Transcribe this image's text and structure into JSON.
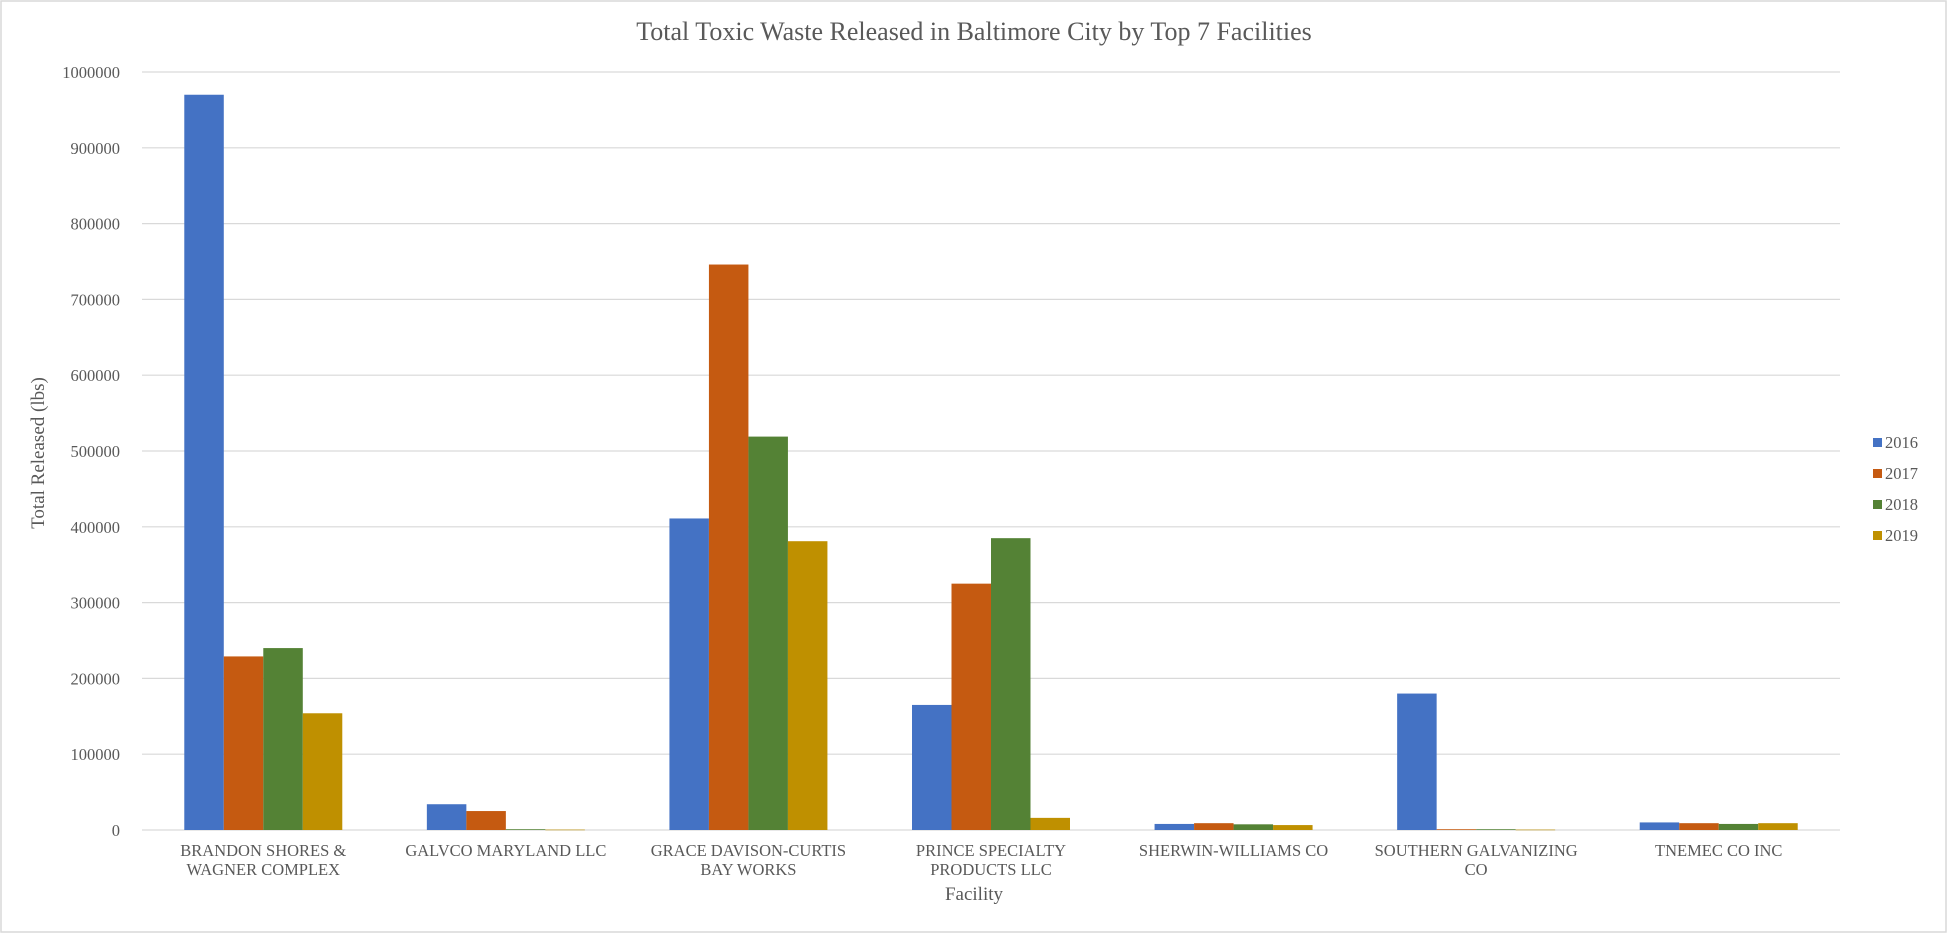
{
  "chart_data": {
    "type": "bar",
    "title": "Total Toxic Waste Released in Baltimore City by Top 7 Facilities",
    "xlabel": "Facility",
    "ylabel": "Total Released (lbs)",
    "ylim": [
      0,
      1000000
    ],
    "yticks": [
      "0",
      "100000",
      "200000",
      "300000",
      "400000",
      "500000",
      "600000",
      "700000",
      "800000",
      "900000",
      "1000000"
    ],
    "categories": [
      [
        "BRANDON SHORES &",
        "WAGNER COMPLEX"
      ],
      [
        "GALVCO MARYLAND LLC"
      ],
      [
        "GRACE DAVISON-CURTIS",
        "BAY WORKS"
      ],
      [
        "PRINCE SPECIALTY",
        "PRODUCTS LLC"
      ],
      [
        "SHERWIN-WILLIAMS CO"
      ],
      [
        "SOUTHERN GALVANIZING",
        "CO"
      ],
      [
        "TNEMEC CO INC"
      ]
    ],
    "series": [
      {
        "name": "2016",
        "color": "#4472c4",
        "values": [
          970000,
          34000,
          411000,
          165000,
          8000,
          180000,
          10000
        ]
      },
      {
        "name": "2017",
        "color": "#c55a11",
        "values": [
          229000,
          25000,
          746000,
          325000,
          9000,
          1000,
          9000
        ]
      },
      {
        "name": "2018",
        "color": "#548235",
        "values": [
          240000,
          1000,
          519000,
          385000,
          7500,
          1000,
          8000
        ]
      },
      {
        "name": "2019",
        "color": "#bf9000",
        "values": [
          154000,
          500,
          381000,
          16000,
          6500,
          500,
          9000
        ]
      }
    ],
    "grid": true,
    "legend": "right"
  }
}
